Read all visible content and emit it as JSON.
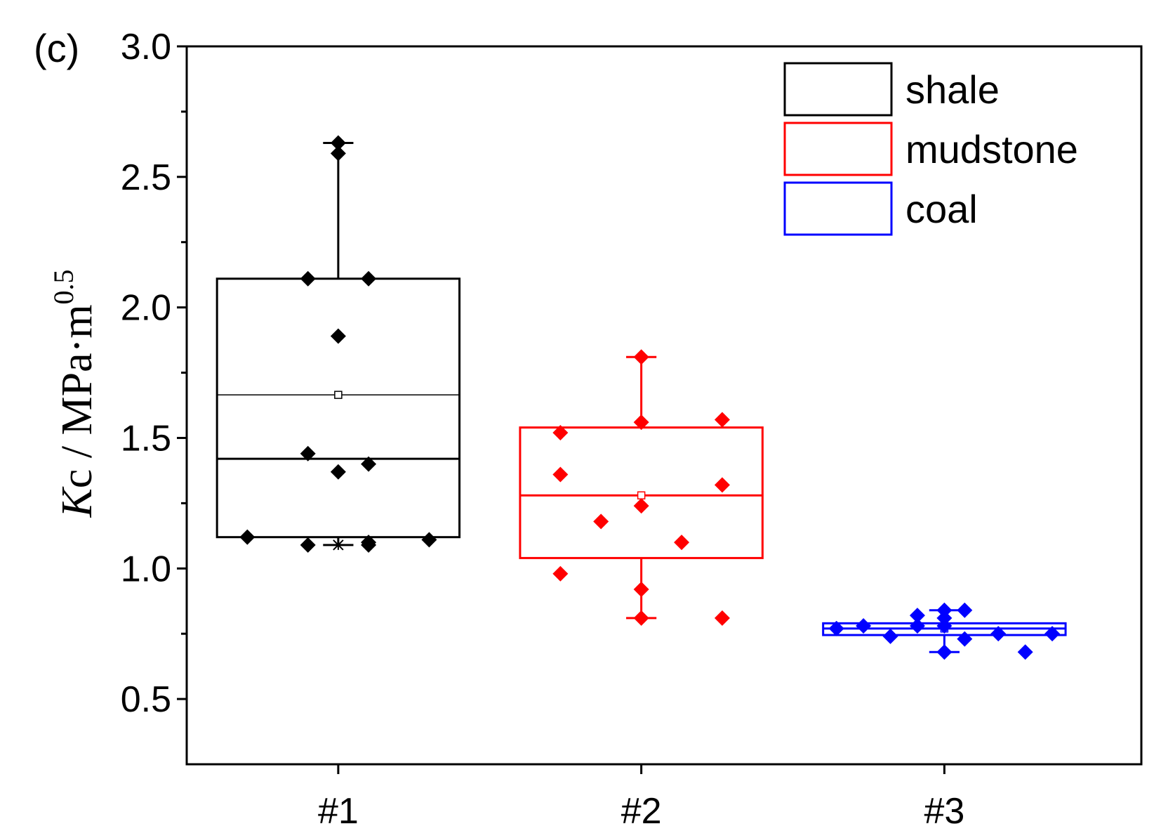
{
  "chart_data": {
    "type": "box",
    "panel_label": "(c)",
    "title": "",
    "xlabel": "",
    "ylabel": {
      "italic": "K",
      "main": "c / MPa·m",
      "sup": "0.5"
    },
    "ylim": [
      0.25,
      3.0
    ],
    "yticks": [
      0.5,
      1.0,
      1.5,
      2.0,
      2.5,
      3.0
    ],
    "yticklabels": [
      "0.5",
      "1.0",
      "1.5",
      "2.0",
      "2.5",
      "3.0"
    ],
    "yminor": [
      0.75,
      1.25,
      1.75,
      2.25,
      2.75
    ],
    "categories": [
      "#1",
      "#2",
      "#3"
    ],
    "legend": {
      "position": "top-right",
      "entries": [
        "shale",
        "mudstone",
        "coal"
      ]
    },
    "series": [
      {
        "name": "shale",
        "category": "#1",
        "color": "#000000",
        "q1": 1.12,
        "median": 1.42,
        "q3": 2.11,
        "mean": 1.665,
        "whisker_low": 1.09,
        "whisker_high": 2.63,
        "low_marker": "cross",
        "points": [
          {
            "offset": -0.3,
            "value": 1.12
          },
          {
            "offset": -0.1,
            "value": 2.11
          },
          {
            "offset": -0.1,
            "value": 1.44
          },
          {
            "offset": -0.1,
            "value": 1.09
          },
          {
            "offset": 0.0,
            "value": 2.63
          },
          {
            "offset": 0.0,
            "value": 2.59
          },
          {
            "offset": 0.0,
            "value": 1.89
          },
          {
            "offset": 0.0,
            "value": 1.37
          },
          {
            "offset": 0.1,
            "value": 2.11
          },
          {
            "offset": 0.1,
            "value": 1.4
          },
          {
            "offset": 0.1,
            "value": 1.1
          },
          {
            "offset": 0.1,
            "value": 1.09
          },
          {
            "offset": 0.3,
            "value": 1.11
          }
        ]
      },
      {
        "name": "mudstone",
        "category": "#2",
        "color": "#ff0000",
        "q1": 1.04,
        "median": 1.28,
        "q3": 1.54,
        "mean": 1.28,
        "whisker_low": 0.81,
        "whisker_high": 1.81,
        "low_marker": "none",
        "points": [
          {
            "offset": -0.267,
            "value": 1.52
          },
          {
            "offset": -0.267,
            "value": 1.36
          },
          {
            "offset": -0.267,
            "value": 0.98
          },
          {
            "offset": -0.133,
            "value": 1.18
          },
          {
            "offset": 0.0,
            "value": 1.81
          },
          {
            "offset": 0.0,
            "value": 1.56
          },
          {
            "offset": 0.0,
            "value": 1.24
          },
          {
            "offset": 0.0,
            "value": 0.92
          },
          {
            "offset": 0.0,
            "value": 0.81
          },
          {
            "offset": 0.133,
            "value": 1.1
          },
          {
            "offset": 0.267,
            "value": 1.57
          },
          {
            "offset": 0.267,
            "value": 1.32
          },
          {
            "offset": 0.267,
            "value": 0.81
          }
        ]
      },
      {
        "name": "coal",
        "category": "#3",
        "color": "#0000ff",
        "q1": 0.745,
        "median": 0.77,
        "q3": 0.79,
        "mean": 0.77,
        "whisker_low": 0.68,
        "whisker_high": 0.84,
        "low_marker": "none",
        "points": [
          {
            "offset": -0.356,
            "value": 0.77
          },
          {
            "offset": -0.267,
            "value": 0.78
          },
          {
            "offset": -0.178,
            "value": 0.74
          },
          {
            "offset": -0.089,
            "value": 0.82
          },
          {
            "offset": -0.089,
            "value": 0.78
          },
          {
            "offset": 0.0,
            "value": 0.84
          },
          {
            "offset": 0.0,
            "value": 0.81
          },
          {
            "offset": 0.0,
            "value": 0.78
          },
          {
            "offset": 0.0,
            "value": 0.68
          },
          {
            "offset": 0.067,
            "value": 0.84
          },
          {
            "offset": 0.067,
            "value": 0.73
          },
          {
            "offset": 0.178,
            "value": 0.75
          },
          {
            "offset": 0.267,
            "value": 0.68
          },
          {
            "offset": 0.356,
            "value": 0.75
          }
        ]
      }
    ]
  }
}
